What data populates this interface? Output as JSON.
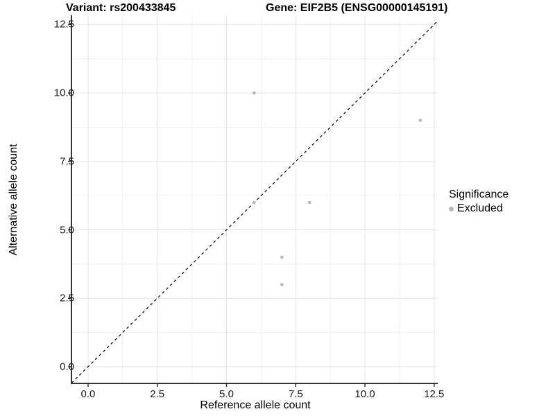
{
  "figure": {
    "title_variant": "Variant: rs200433845",
    "title_gene": "Gene: EIF2B5 (ENSG00000145191)"
  },
  "chart_data": {
    "type": "scatter",
    "title": "Variant: rs200433845    Gene: EIF2B5 (ENSG00000145191)",
    "xlabel": "Reference allele count",
    "ylabel": "Alternative allele count",
    "xlim": [
      -0.6,
      12.63
    ],
    "ylim": [
      -0.61,
      12.84
    ],
    "x_ticks": {
      "values": [
        0.0,
        2.5,
        5.0,
        7.5,
        10.0,
        12.5
      ],
      "labels": [
        "0.0",
        "2.5",
        "5.0",
        "7.5",
        "10.0",
        "12.5"
      ]
    },
    "y_ticks": {
      "values": [
        0.0,
        2.5,
        5.0,
        7.5,
        10.0,
        12.5
      ],
      "labels": [
        "0.0",
        "2.5",
        "5.0",
        "7.5",
        "10.0",
        "12.5"
      ]
    },
    "x_minor_ticks": [
      1.25,
      3.75,
      6.25,
      8.75,
      11.25
    ],
    "y_minor_ticks": [
      1.25,
      3.75,
      6.25,
      8.75,
      11.25
    ],
    "grid": true,
    "legend_position": "right",
    "identity_line": {
      "slope": 1,
      "intercept": 0,
      "style": "dashed",
      "color": "#000000"
    },
    "series": [
      {
        "name": "Excluded",
        "color": "#b9b9b9",
        "point_radius": 2.4,
        "points": [
          [
            6,
            10
          ],
          [
            6,
            6
          ],
          [
            12,
            9
          ],
          [
            8,
            6
          ],
          [
            7,
            4
          ],
          [
            7,
            3
          ]
        ]
      }
    ],
    "legend": {
      "title": "Significance",
      "items": [
        {
          "label": "Excluded",
          "color": "#b9b9b9"
        }
      ]
    },
    "colors": {
      "background": "#ffffff",
      "grid_major": "#e3e3e3",
      "grid_minor": "#f1f1f1",
      "axis_line": "#333333",
      "tick_mark": "#333333",
      "point": "#b9b9b9",
      "identity_line": "#000000"
    }
  }
}
